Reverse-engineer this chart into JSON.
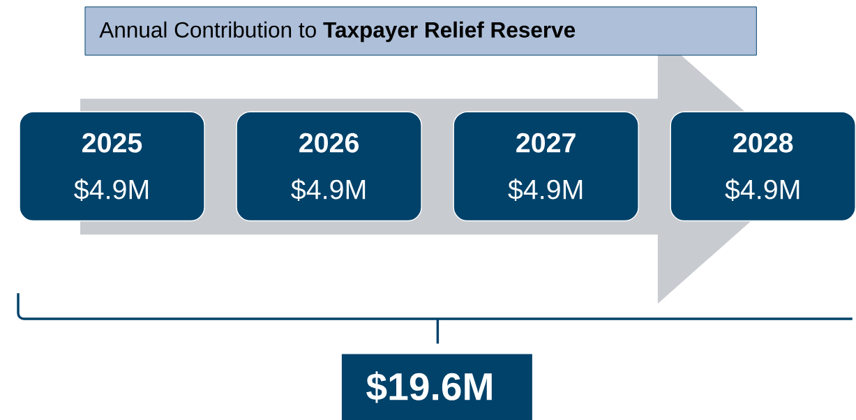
{
  "chart_data": {
    "type": "bar",
    "title": "Annual Contribution to **Taxpayer Relief Reserve**",
    "categories": [
      "2025",
      "2026",
      "2027",
      "2028"
    ],
    "values": [
      4.9,
      4.9,
      4.9,
      4.9
    ],
    "value_labels": [
      "$4.9M",
      "$4.9M",
      "$4.9M",
      "$4.9M"
    ],
    "color": "#00426a",
    "annotations": [
      "$19.6M"
    ]
  }
}
